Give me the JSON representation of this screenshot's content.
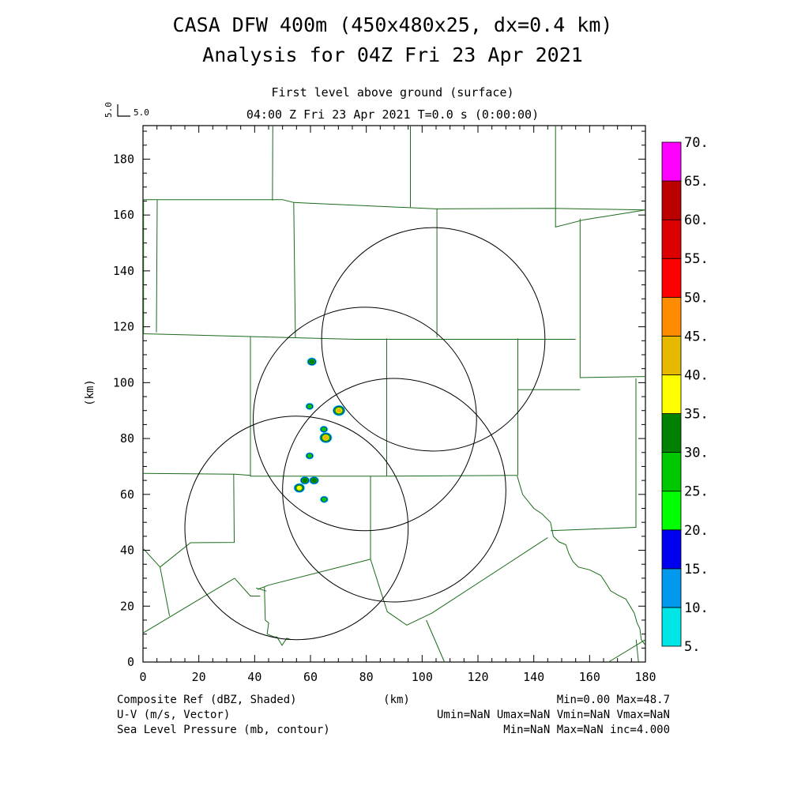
{
  "chart_data": {
    "type": "heatmap",
    "title": "CASA DFW 400m (450x480x25, dx=0.4 km)",
    "subtitle": "Analysis for 04Z Fri 23 Apr 2021",
    "level_label": "First level above ground (surface)",
    "time_label": "04:00 Z Fri 23 Apr 2021    T=0.0 s (0:00:00)",
    "vector_key": {
      "top": "5.0",
      "right": "5.0"
    },
    "xlabel": "(km)",
    "ylabel": "(km)",
    "xlim": [
      0,
      180
    ],
    "ylim": [
      0,
      192
    ],
    "x_ticks": [
      "0",
      "20",
      "40",
      "60",
      "80",
      "100",
      "120",
      "140",
      "160",
      "180"
    ],
    "y_ticks": [
      "0",
      "20",
      "40",
      "60",
      "80",
      "100",
      "120",
      "140",
      "160",
      "180"
    ],
    "colorbar": {
      "labels": [
        "5.",
        "10.",
        "15.",
        "20.",
        "25.",
        "30.",
        "35.",
        "40.",
        "45.",
        "50.",
        "55.",
        "60.",
        "65.",
        "70."
      ],
      "colors": [
        "#00e5e5",
        "#0099ee",
        "#0000f0",
        "#00ff00",
        "#00c800",
        "#008000",
        "#ffff00",
        "#e6b800",
        "#ff8c00",
        "#ff0000",
        "#dd0000",
        "#bb0000",
        "#ff00ff"
      ]
    },
    "radar_rings": [
      {
        "center": [
          55.0,
          48.0
        ],
        "radius": 40
      },
      {
        "center": [
          79.5,
          87.0
        ],
        "radius": 40
      },
      {
        "center": [
          90.0,
          61.5
        ],
        "radius": 40
      },
      {
        "center": [
          104.0,
          115.5
        ],
        "radius": 40
      }
    ],
    "echoes": [
      {
        "x": 60.5,
        "y": 107.5,
        "dbz": 30
      },
      {
        "x": 59.7,
        "y": 91.5,
        "dbz": 28
      },
      {
        "x": 70.2,
        "y": 90.0,
        "dbz": 40
      },
      {
        "x": 64.8,
        "y": 83.3,
        "dbz": 28
      },
      {
        "x": 65.5,
        "y": 80.3,
        "dbz": 40
      },
      {
        "x": 59.7,
        "y": 73.8,
        "dbz": 28
      },
      {
        "x": 58.0,
        "y": 65.0,
        "dbz": 32
      },
      {
        "x": 61.3,
        "y": 65.0,
        "dbz": 32
      },
      {
        "x": 56.0,
        "y": 62.3,
        "dbz": 35
      },
      {
        "x": 64.9,
        "y": 58.2,
        "dbz": 28
      }
    ],
    "county_lines": [
      [
        [
          0.2,
          165.5
        ],
        [
          50,
          165.5
        ],
        [
          54,
          164.5
        ],
        [
          105,
          162.2
        ],
        [
          147,
          162.4
        ],
        [
          180,
          161.8
        ]
      ],
      [
        [
          0.2,
          165.5
        ],
        [
          0.2,
          117.5
        ]
      ],
      [
        [
          5.1,
          165.3
        ],
        [
          4.8,
          118
        ]
      ],
      [
        [
          0.2,
          117.5
        ],
        [
          38,
          116.5
        ],
        [
          76,
          115.5
        ],
        [
          155,
          115.5
        ]
      ],
      [
        [
          46.5,
          192
        ],
        [
          46.4,
          165.2
        ]
      ],
      [
        [
          95.8,
          192
        ],
        [
          95.8,
          162.8
        ]
      ],
      [
        [
          147.8,
          192
        ],
        [
          147.8,
          155.7
        ],
        [
          158,
          158.3
        ],
        [
          180,
          161.8
        ]
      ],
      [
        [
          54,
          164.5
        ],
        [
          54.6,
          116.2
        ]
      ],
      [
        [
          105.3,
          162.2
        ],
        [
          105.3,
          116.2
        ]
      ],
      [
        [
          156.6,
          158.7
        ],
        [
          156.6,
          115.5
        ],
        [
          156.6,
          101.8
        ],
        [
          180,
          102.2
        ]
      ],
      [
        [
          38.5,
          116.5
        ],
        [
          38.5,
          66.5
        ],
        [
          86,
          66.5
        ],
        [
          134,
          66.8
        ]
      ],
      [
        [
          87.3,
          115.8
        ],
        [
          87.3,
          66.5
        ]
      ],
      [
        [
          134.3,
          115.8
        ],
        [
          134.3,
          66.8
        ]
      ],
      [
        [
          134.3,
          97.5
        ],
        [
          156.6,
          97.5
        ]
      ],
      [
        [
          176.6,
          101.5
        ],
        [
          176.6,
          48.2
        ],
        [
          146,
          47
        ]
      ],
      [
        [
          0.2,
          67.5
        ],
        [
          33,
          67.2
        ],
        [
          38.5,
          66.8
        ]
      ],
      [
        [
          32.5,
          67.2
        ],
        [
          32.7,
          42.8
        ],
        [
          17,
          42.7
        ],
        [
          6.1,
          34
        ]
      ],
      [
        [
          0.2,
          40.5
        ],
        [
          6.1,
          34
        ],
        [
          9.5,
          16.5
        ]
      ],
      [
        [
          32.8,
          30
        ],
        [
          38.5,
          23.6
        ],
        [
          42,
          23.6
        ]
      ],
      [
        [
          0.2,
          10.5
        ],
        [
          32.8,
          30
        ]
      ],
      [
        [
          41,
          26
        ],
        [
          45,
          27.5
        ],
        [
          81.5,
          36.8
        ],
        [
          87.5,
          18
        ],
        [
          94.5,
          13.2
        ],
        [
          103.5,
          17.5
        ],
        [
          145,
          44.5
        ]
      ],
      [
        [
          81.5,
          36.8
        ],
        [
          81.5,
          66.5
        ]
      ],
      [
        [
          40.5,
          26.5
        ],
        [
          44.2,
          25.4
        ]
      ],
      [
        [
          43.5,
          27
        ],
        [
          43.8,
          15
        ],
        [
          45,
          14
        ],
        [
          44.5,
          10
        ],
        [
          47,
          9
        ],
        [
          48,
          9
        ],
        [
          49.8,
          6
        ],
        [
          51.5,
          8.5
        ],
        [
          53,
          8
        ]
      ],
      [
        [
          134,
          66.8
        ],
        [
          136,
          60
        ],
        [
          140,
          55
        ],
        [
          143,
          53
        ],
        [
          146,
          50
        ],
        [
          147,
          45
        ],
        [
          149,
          43
        ],
        [
          151.5,
          42
        ],
        [
          152.5,
          39
        ],
        [
          154,
          36
        ],
        [
          156,
          34
        ],
        [
          160,
          33
        ],
        [
          162,
          32
        ],
        [
          164,
          31
        ],
        [
          166,
          28
        ],
        [
          167.5,
          25.5
        ],
        [
          170,
          24
        ],
        [
          173,
          22.5
        ],
        [
          174.5,
          20
        ],
        [
          176,
          17.5
        ],
        [
          177,
          14
        ],
        [
          178,
          12
        ],
        [
          178.5,
          8
        ],
        [
          180,
          6
        ]
      ],
      [
        [
          101.5,
          15
        ],
        [
          108,
          0
        ]
      ],
      [
        [
          166.8,
          0
        ],
        [
          180,
          8
        ]
      ],
      [
        [
          176.7,
          8
        ],
        [
          177.5,
          0
        ]
      ]
    ]
  }
}
